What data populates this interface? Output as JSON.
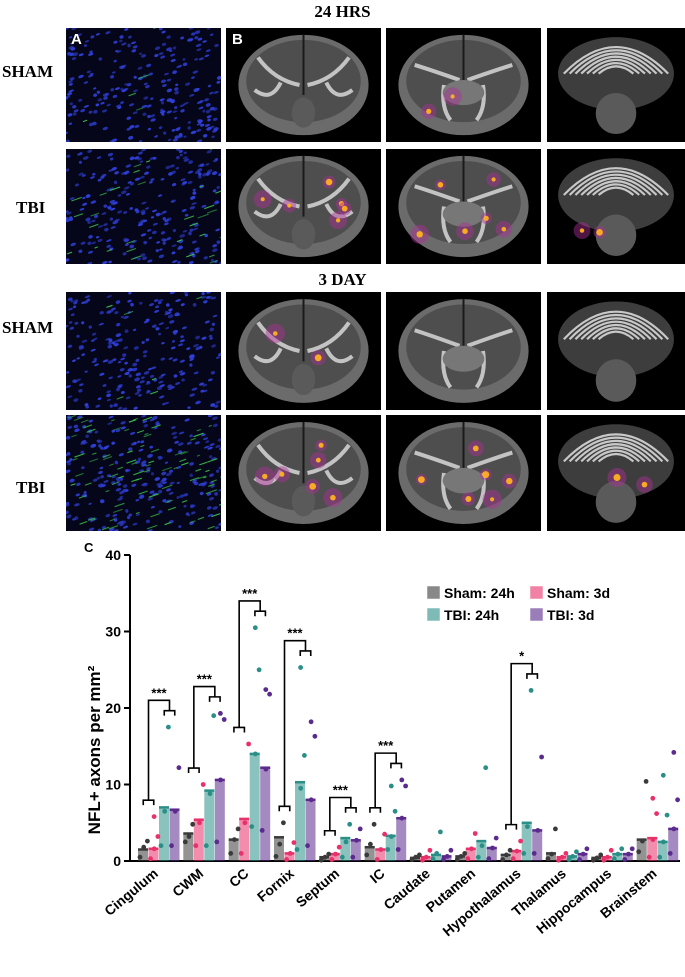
{
  "figure": {
    "section_24h": "24 HRS",
    "section_3d": "3 DAY",
    "row_labels": {
      "sham": "SHAM",
      "tbi": "TBI"
    },
    "panel_letters": {
      "a": "A",
      "b": "B",
      "c": "C"
    },
    "colors": {
      "sham24": "#3a3a3a",
      "tbi24": "#2a8f87",
      "sham3d": "#e8306a",
      "tbi3d": "#5a2a8c",
      "nuclei": "#2f3fd6",
      "nfl": "#39c24a"
    }
  },
  "chart_data": {
    "type": "bar",
    "ylabel": "NFL+ axons per mm²",
    "ylim": [
      0,
      40
    ],
    "yticks": [
      0,
      10,
      20,
      30,
      40
    ],
    "categories": [
      "Cingulum",
      "CWM",
      "CC",
      "Fornix",
      "Septum",
      "IC",
      "Caudate",
      "Putamen",
      "Hypothalamus",
      "Thalamus",
      "Hippocampus",
      "Brainstem"
    ],
    "series": [
      {
        "name": "Sham: 24h",
        "values": [
          1.5,
          3.6,
          2.8,
          3.1,
          0.5,
          1.8,
          0.4,
          0.6,
          0.8,
          1.0,
          0.4,
          2.8
        ]
      },
      {
        "name": "TBI: 24h",
        "values": [
          7.0,
          9.2,
          14.0,
          10.3,
          3.0,
          3.3,
          0.8,
          2.6,
          5.0,
          0.6,
          0.9,
          2.5
        ]
      },
      {
        "name": "Sham: 3d",
        "values": [
          1.6,
          5.4,
          5.5,
          1.0,
          0.9,
          1.5,
          0.5,
          1.6,
          1.3,
          0.5,
          0.5,
          3.0
        ]
      },
      {
        "name": "TBI: 3d",
        "values": [
          6.7,
          10.6,
          12.2,
          8.0,
          2.7,
          5.6,
          0.6,
          1.7,
          4.0,
          0.9,
          0.9,
          4.2
        ]
      }
    ],
    "legend_position": "top-right",
    "significance": [
      {
        "category": "Cingulum",
        "label": "***"
      },
      {
        "category": "CWM",
        "label": "***"
      },
      {
        "category": "CC",
        "label": "***"
      },
      {
        "category": "Fornix",
        "label": "***"
      },
      {
        "category": "Septum",
        "label": "***"
      },
      {
        "category": "IC",
        "label": "***"
      },
      {
        "category": "Hypothalamus",
        "label": "*"
      }
    ],
    "points": {
      "Sham: 24h": [
        [
          0.5,
          1.8,
          2.6
        ],
        [
          2.5,
          3.2,
          4.8
        ],
        [
          1.0,
          2.8,
          4.2
        ],
        [
          0.6,
          2.2,
          5.0
        ],
        [
          0.1,
          0.5,
          0.9
        ],
        [
          0.8,
          2.2,
          4.8
        ],
        [
          0.2,
          0.5,
          0.8
        ],
        [
          0.2,
          0.6,
          1.0
        ],
        [
          0.2,
          0.8,
          1.4
        ],
        [
          0.3,
          0.9,
          4.2
        ],
        [
          0.1,
          0.4,
          0.8
        ],
        [
          1.2,
          2.6,
          10.4
        ]
      ],
      "TBI: 24h": [
        [
          2.0,
          6.5,
          17.5
        ],
        [
          2.0,
          8.8,
          19.0
        ],
        [
          4.5,
          14.0,
          25.0,
          30.5
        ],
        [
          1.5,
          9.5,
          13.8,
          25.3
        ],
        [
          0.5,
          2.5,
          4.8
        ],
        [
          1.5,
          3.2,
          6.5,
          9.8
        ],
        [
          0.3,
          1.0,
          3.8
        ],
        [
          0.5,
          2.0,
          12.2
        ],
        [
          1.0,
          4.5,
          22.3
        ],
        [
          0.2,
          0.6,
          1.2
        ],
        [
          0.3,
          0.9,
          1.6
        ],
        [
          0.5,
          2.5,
          6.0,
          11.2
        ]
      ],
      "Sham: 3d": [
        [
          0.3,
          1.6,
          3.2,
          5.8
        ],
        [
          2.0,
          5.0,
          10.0
        ],
        [
          1.0,
          5.0,
          15.3
        ],
        [
          0.2,
          1.0,
          2.4
        ],
        [
          0.2,
          0.9,
          1.8
        ],
        [
          0.2,
          1.5,
          3.5
        ],
        [
          0.1,
          0.5,
          1.4
        ],
        [
          0.3,
          1.6,
          3.6
        ],
        [
          0.3,
          1.3,
          2.6
        ],
        [
          0.1,
          0.5,
          1.0
        ],
        [
          0.1,
          0.5,
          1.4
        ],
        [
          0.5,
          2.8,
          6.2,
          8.2
        ]
      ],
      "TBI: 3d": [
        [
          2.0,
          6.5,
          12.2
        ],
        [
          2.5,
          10.6,
          18.5,
          19.3
        ],
        [
          4.0,
          12.0,
          21.8,
          22.4
        ],
        [
          2.0,
          8.0,
          16.3,
          18.2
        ],
        [
          0.5,
          2.7,
          4.2
        ],
        [
          1.5,
          5.6,
          9.8,
          10.6
        ],
        [
          0.2,
          0.6,
          1.4
        ],
        [
          0.3,
          1.7,
          3.0
        ],
        [
          1.0,
          4.0,
          13.6
        ],
        [
          0.2,
          0.9,
          1.6
        ],
        [
          0.2,
          0.9,
          1.6
        ],
        [
          1.0,
          4.2,
          8.0,
          14.2
        ]
      ]
    }
  }
}
